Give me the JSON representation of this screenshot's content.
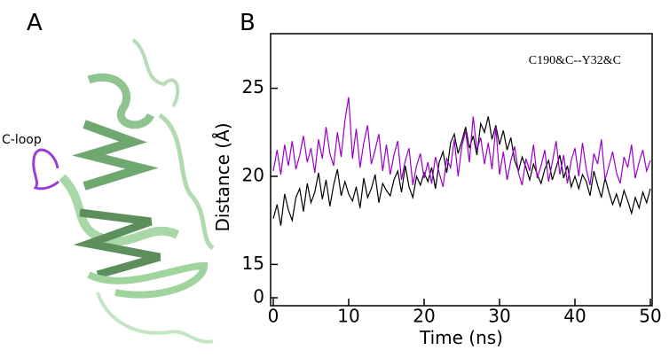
{
  "panel_a": {
    "label": "A",
    "annotation": "C-loop"
  },
  "chart_data": {
    "type": "line",
    "panel_label": "B",
    "annotation": "C190&C--Y32&C",
    "x_label": "Time (ns)",
    "y_label": "Distance (Å)",
    "xlim": [
      0,
      50
    ],
    "xticks": [
      0,
      10,
      20,
      30,
      40,
      50
    ],
    "ylim": [
      0,
      28.1
    ],
    "yticks": [
      0,
      15,
      20,
      25
    ],
    "y_break": 15,
    "grid": false,
    "x": [
      0,
      0.5,
      1,
      1.5,
      2,
      2.5,
      3,
      3.5,
      4,
      4.5,
      5,
      5.5,
      6,
      6.5,
      7,
      7.5,
      8,
      8.5,
      9,
      9.5,
      10,
      10.5,
      11,
      11.5,
      12,
      12.5,
      13,
      13.5,
      14,
      14.5,
      15,
      15.5,
      16,
      16.5,
      17,
      17.5,
      18,
      18.5,
      19,
      19.5,
      20,
      20.5,
      21,
      21.5,
      22,
      22.5,
      23,
      23.5,
      24,
      24.5,
      25,
      25.5,
      26,
      26.5,
      27,
      27.5,
      28,
      28.5,
      29,
      29.5,
      30,
      30.5,
      31,
      31.5,
      32,
      32.5,
      33,
      33.5,
      34,
      34.5,
      35,
      35.5,
      36,
      36.5,
      37,
      37.5,
      38,
      38.5,
      39,
      39.5,
      40,
      40.5,
      41,
      41.5,
      42,
      42.5,
      43,
      43.5,
      44,
      44.5,
      45,
      45.5,
      46,
      46.5,
      47,
      47.5,
      48,
      48.5,
      49,
      49.5,
      50
    ],
    "series": [
      {
        "color": "#000000",
        "values": [
          17.6,
          18.4,
          17.2,
          19.0,
          18.1,
          17.5,
          18.8,
          19.3,
          18.0,
          19.6,
          18.5,
          19.1,
          20.2,
          18.7,
          19.8,
          18.3,
          19.5,
          20.4,
          18.9,
          19.7,
          19.0,
          18.6,
          19.4,
          18.2,
          19.9,
          18.8,
          19.3,
          20.1,
          18.5,
          19.6,
          19.2,
          18.9,
          19.8,
          20.3,
          19.1,
          20.6,
          19.4,
          18.8,
          20.0,
          19.5,
          20.2,
          19.7,
          20.5,
          19.3,
          20.8,
          21.4,
          20.2,
          21.9,
          22.4,
          21.3,
          22.0,
          22.8,
          21.6,
          22.3,
          21.2,
          23.0,
          22.5,
          23.4,
          22.1,
          22.9,
          21.8,
          22.6,
          21.5,
          22.2,
          20.9,
          20.3,
          21.1,
          20.5,
          19.8,
          20.7,
          20.1,
          19.6,
          20.4,
          20.9,
          19.8,
          20.5,
          21.2,
          19.9,
          20.6,
          19.4,
          20.0,
          19.3,
          20.1,
          19.7,
          18.9,
          20.3,
          19.5,
          18.8,
          19.9,
          19.1,
          18.4,
          19.0,
          18.3,
          19.2,
          18.6,
          17.9,
          18.8,
          18.2,
          19.1,
          18.5,
          19.3
        ]
      },
      {
        "color": "#9900cc",
        "values": [
          20.3,
          21.5,
          20.1,
          21.8,
          20.6,
          22.0,
          20.4,
          21.2,
          22.3,
          20.8,
          21.6,
          20.2,
          22.1,
          21.0,
          22.8,
          21.3,
          20.6,
          22.5,
          21.1,
          23.2,
          24.5,
          21.0,
          22.7,
          20.5,
          21.9,
          22.9,
          20.7,
          21.5,
          22.4,
          20.3,
          21.8,
          20.1,
          21.2,
          22.0,
          19.8,
          20.9,
          21.6,
          19.5,
          20.6,
          21.3,
          19.9,
          20.8,
          19.6,
          21.1,
          20.2,
          19.4,
          21.0,
          20.5,
          22.1,
          20.0,
          21.7,
          22.6,
          20.8,
          23.4,
          21.5,
          22.2,
          20.7,
          21.9,
          20.4,
          22.8,
          20.1,
          21.4,
          19.8,
          20.9,
          21.7,
          20.2,
          19.5,
          21.0,
          20.3,
          21.8,
          19.9,
          20.6,
          21.5,
          19.7,
          20.8,
          22.0,
          20.1,
          21.2,
          19.6,
          20.9,
          21.6,
          20.0,
          21.9,
          20.4,
          19.5,
          21.3,
          20.7,
          22.1,
          19.8,
          20.6,
          21.4,
          20.2,
          19.6,
          21.1,
          20.5,
          21.8,
          19.9,
          20.8,
          21.5,
          20.3,
          20.9
        ]
      }
    ]
  }
}
